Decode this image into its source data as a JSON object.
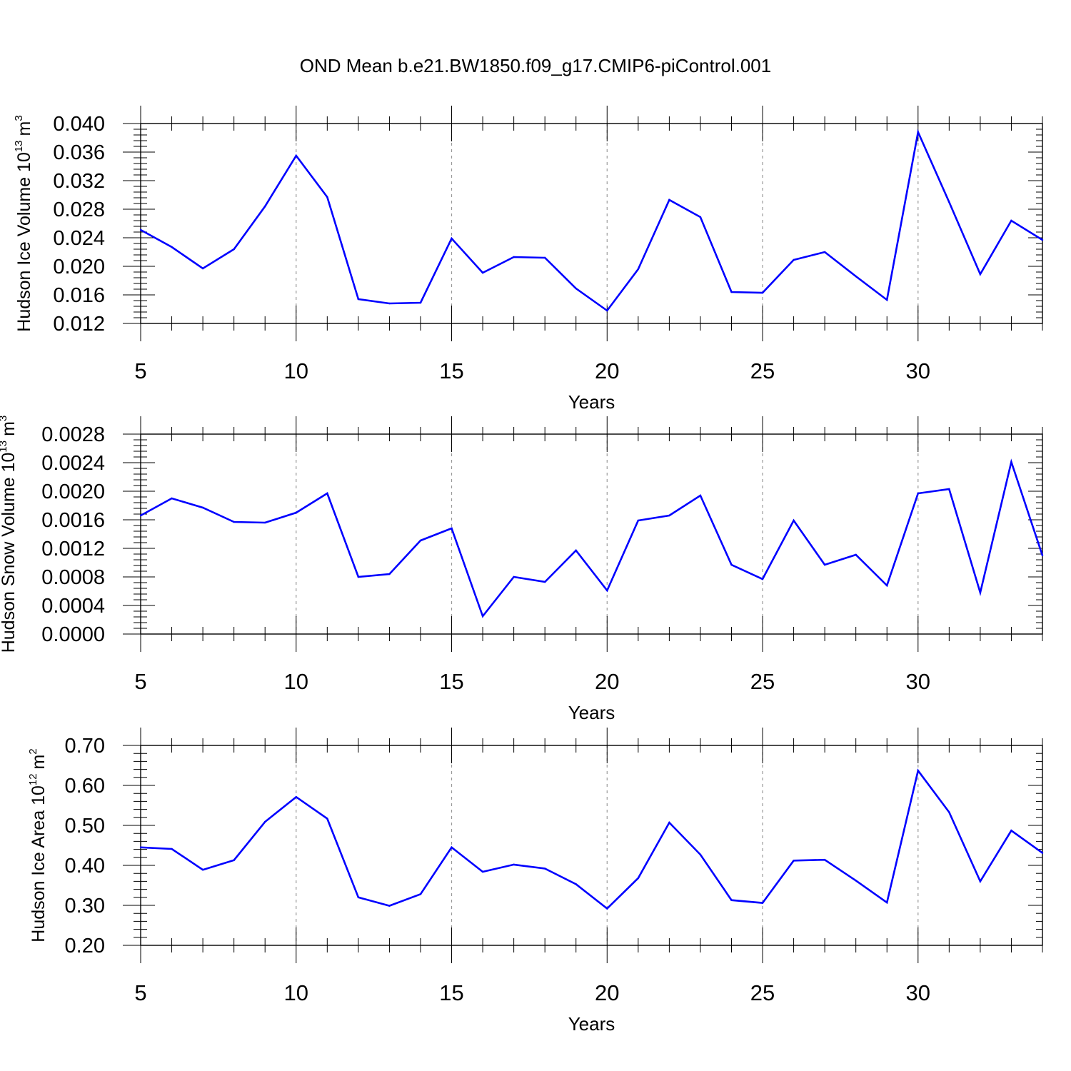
{
  "chart_data": [
    {
      "type": "line",
      "title": "OND Mean b.e21.BW1850.f09_g17.CMIP6-piControl.001",
      "ylabel": "Hudson Ice Volume 10",
      "ylabel_exp": "13",
      "ylabel_unit": "m",
      "ylabel_unit_exp": "3",
      "xlabel": "Years",
      "xlim": [
        5,
        34
      ],
      "ylim": [
        0.012,
        0.04
      ],
      "yticks": [
        "0.012",
        "0.016",
        "0.020",
        "0.024",
        "0.028",
        "0.032",
        "0.036",
        "0.040"
      ],
      "xticks": [
        "5",
        "10",
        "15",
        "20",
        "25",
        "30"
      ],
      "grid": "vertical dashed at major x ticks",
      "series": [
        {
          "name": "Hudson Ice Volume",
          "color": "#0000ff",
          "x": [
            5,
            6,
            7,
            8,
            9,
            10,
            11,
            12,
            13,
            14,
            15,
            16,
            17,
            18,
            19,
            20,
            21,
            22,
            23,
            24,
            25,
            26,
            27,
            28,
            29,
            30,
            31,
            32,
            33,
            34
          ],
          "values": [
            0.0251,
            0.0227,
            0.0197,
            0.0224,
            0.0284,
            0.0355,
            0.0297,
            0.0154,
            0.0148,
            0.0149,
            0.0239,
            0.0191,
            0.0213,
            0.0212,
            0.0169,
            0.0138,
            0.0196,
            0.0293,
            0.0269,
            0.0164,
            0.0163,
            0.0209,
            0.022,
            0.0186,
            0.0153,
            0.0388,
            0.029,
            0.0189,
            0.0264,
            0.0237
          ]
        }
      ]
    },
    {
      "type": "line",
      "ylabel": "Hudson Snow Volume 10",
      "ylabel_exp": "13",
      "ylabel_unit": "m",
      "ylabel_unit_exp": "3",
      "xlabel": "Years",
      "xlim": [
        5,
        34
      ],
      "ylim": [
        0.0,
        0.0028
      ],
      "yticks": [
        "0.0000",
        "0.0004",
        "0.0008",
        "0.0012",
        "0.0016",
        "0.0020",
        "0.0024",
        "0.0028"
      ],
      "xticks": [
        "5",
        "10",
        "15",
        "20",
        "25",
        "30"
      ],
      "grid": "vertical dashed at major x ticks",
      "series": [
        {
          "name": "Hudson Snow Volume",
          "color": "#0000ff",
          "x": [
            5,
            6,
            7,
            8,
            9,
            10,
            11,
            12,
            13,
            14,
            15,
            16,
            17,
            18,
            19,
            20,
            21,
            22,
            23,
            24,
            25,
            26,
            27,
            28,
            29,
            30,
            31,
            32,
            33,
            34
          ],
          "values": [
            0.00166,
            0.0019,
            0.00177,
            0.00157,
            0.00156,
            0.0017,
            0.00197,
            0.0008,
            0.00084,
            0.00131,
            0.00148,
            0.00025,
            0.0008,
            0.00073,
            0.00117,
            0.00061,
            0.00159,
            0.00166,
            0.00194,
            0.00097,
            0.00077,
            0.00159,
            0.00097,
            0.00111,
            0.00068,
            0.00197,
            0.00203,
            0.00058,
            0.00241,
            0.0011
          ]
        }
      ]
    },
    {
      "type": "line",
      "ylabel": "Hudson Ice Area 10",
      "ylabel_exp": "12",
      "ylabel_unit": "m",
      "ylabel_unit_exp": "2",
      "xlabel": "Years",
      "xlim": [
        5,
        34
      ],
      "ylim": [
        0.2,
        0.7
      ],
      "yticks": [
        "0.20",
        "0.30",
        "0.40",
        "0.50",
        "0.60",
        "0.70"
      ],
      "xticks": [
        "5",
        "10",
        "15",
        "20",
        "25",
        "30"
      ],
      "grid": "vertical dashed at major x ticks",
      "series": [
        {
          "name": "Hudson Ice Area",
          "color": "#0000ff",
          "x": [
            5,
            6,
            7,
            8,
            9,
            10,
            11,
            12,
            13,
            14,
            15,
            16,
            17,
            18,
            19,
            20,
            21,
            22,
            23,
            24,
            25,
            26,
            27,
            28,
            29,
            30,
            31,
            32,
            33,
            34
          ],
          "values": [
            0.445,
            0.441,
            0.389,
            0.413,
            0.509,
            0.571,
            0.517,
            0.32,
            0.299,
            0.328,
            0.445,
            0.384,
            0.402,
            0.392,
            0.353,
            0.292,
            0.368,
            0.507,
            0.427,
            0.313,
            0.306,
            0.412,
            0.414,
            0.362,
            0.307,
            0.637,
            0.533,
            0.36,
            0.487,
            0.431
          ]
        }
      ]
    }
  ]
}
